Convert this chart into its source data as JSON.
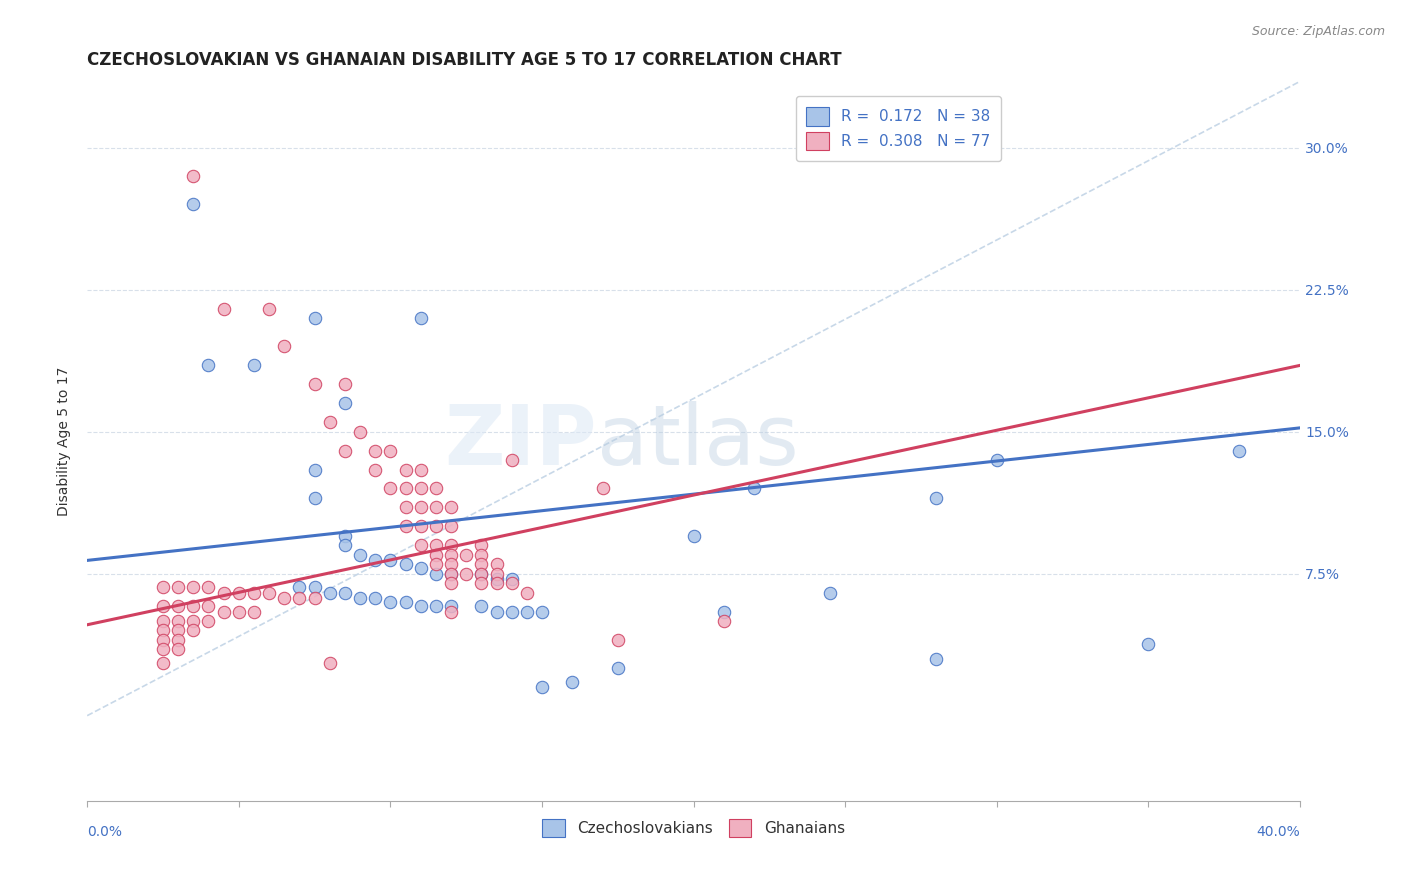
{
  "title": "CZECHOSLOVAKIAN VS GHANAIAN DISABILITY AGE 5 TO 17 CORRELATION CHART",
  "source": "Source: ZipAtlas.com",
  "ylabel": "Disability Age 5 to 17",
  "yticks": [
    0.075,
    0.15,
    0.225,
    0.3
  ],
  "ytick_labels": [
    "7.5%",
    "15.0%",
    "22.5%",
    "30.0%"
  ],
  "xlim": [
    0.0,
    0.4
  ],
  "ylim": [
    -0.045,
    0.335
  ],
  "blue_scatter": [
    [
      0.035,
      0.27
    ],
    [
      0.075,
      0.21
    ],
    [
      0.11,
      0.21
    ],
    [
      0.04,
      0.185
    ],
    [
      0.055,
      0.185
    ],
    [
      0.085,
      0.165
    ],
    [
      0.075,
      0.13
    ],
    [
      0.075,
      0.115
    ],
    [
      0.085,
      0.095
    ],
    [
      0.085,
      0.09
    ],
    [
      0.09,
      0.085
    ],
    [
      0.095,
      0.082
    ],
    [
      0.1,
      0.082
    ],
    [
      0.105,
      0.08
    ],
    [
      0.11,
      0.078
    ],
    [
      0.115,
      0.075
    ],
    [
      0.12,
      0.075
    ],
    [
      0.13,
      0.075
    ],
    [
      0.135,
      0.072
    ],
    [
      0.14,
      0.072
    ],
    [
      0.07,
      0.068
    ],
    [
      0.075,
      0.068
    ],
    [
      0.08,
      0.065
    ],
    [
      0.085,
      0.065
    ],
    [
      0.09,
      0.062
    ],
    [
      0.095,
      0.062
    ],
    [
      0.1,
      0.06
    ],
    [
      0.105,
      0.06
    ],
    [
      0.11,
      0.058
    ],
    [
      0.115,
      0.058
    ],
    [
      0.12,
      0.058
    ],
    [
      0.13,
      0.058
    ],
    [
      0.135,
      0.055
    ],
    [
      0.14,
      0.055
    ],
    [
      0.145,
      0.055
    ],
    [
      0.15,
      0.055
    ],
    [
      0.2,
      0.095
    ],
    [
      0.245,
      0.065
    ],
    [
      0.28,
      0.115
    ],
    [
      0.3,
      0.135
    ],
    [
      0.38,
      0.14
    ],
    [
      0.22,
      0.12
    ],
    [
      0.21,
      0.055
    ],
    [
      0.35,
      0.038
    ],
    [
      0.28,
      0.03
    ],
    [
      0.175,
      0.025
    ],
    [
      0.16,
      0.018
    ],
    [
      0.15,
      0.015
    ]
  ],
  "pink_scatter": [
    [
      0.035,
      0.285
    ],
    [
      0.045,
      0.215
    ],
    [
      0.06,
      0.215
    ],
    [
      0.065,
      0.195
    ],
    [
      0.075,
      0.175
    ],
    [
      0.085,
      0.175
    ],
    [
      0.08,
      0.155
    ],
    [
      0.09,
      0.15
    ],
    [
      0.085,
      0.14
    ],
    [
      0.095,
      0.14
    ],
    [
      0.1,
      0.14
    ],
    [
      0.095,
      0.13
    ],
    [
      0.105,
      0.13
    ],
    [
      0.11,
      0.13
    ],
    [
      0.1,
      0.12
    ],
    [
      0.105,
      0.12
    ],
    [
      0.11,
      0.12
    ],
    [
      0.115,
      0.12
    ],
    [
      0.105,
      0.11
    ],
    [
      0.11,
      0.11
    ],
    [
      0.115,
      0.11
    ],
    [
      0.12,
      0.11
    ],
    [
      0.105,
      0.1
    ],
    [
      0.11,
      0.1
    ],
    [
      0.115,
      0.1
    ],
    [
      0.12,
      0.1
    ],
    [
      0.11,
      0.09
    ],
    [
      0.115,
      0.09
    ],
    [
      0.12,
      0.09
    ],
    [
      0.13,
      0.09
    ],
    [
      0.115,
      0.085
    ],
    [
      0.12,
      0.085
    ],
    [
      0.125,
      0.085
    ],
    [
      0.13,
      0.085
    ],
    [
      0.115,
      0.08
    ],
    [
      0.12,
      0.08
    ],
    [
      0.13,
      0.08
    ],
    [
      0.135,
      0.08
    ],
    [
      0.12,
      0.075
    ],
    [
      0.125,
      0.075
    ],
    [
      0.13,
      0.075
    ],
    [
      0.135,
      0.075
    ],
    [
      0.12,
      0.07
    ],
    [
      0.13,
      0.07
    ],
    [
      0.135,
      0.07
    ],
    [
      0.14,
      0.07
    ],
    [
      0.025,
      0.068
    ],
    [
      0.03,
      0.068
    ],
    [
      0.035,
      0.068
    ],
    [
      0.04,
      0.068
    ],
    [
      0.045,
      0.065
    ],
    [
      0.05,
      0.065
    ],
    [
      0.055,
      0.065
    ],
    [
      0.06,
      0.065
    ],
    [
      0.065,
      0.062
    ],
    [
      0.07,
      0.062
    ],
    [
      0.075,
      0.062
    ],
    [
      0.025,
      0.058
    ],
    [
      0.03,
      0.058
    ],
    [
      0.035,
      0.058
    ],
    [
      0.04,
      0.058
    ],
    [
      0.045,
      0.055
    ],
    [
      0.05,
      0.055
    ],
    [
      0.055,
      0.055
    ],
    [
      0.025,
      0.05
    ],
    [
      0.03,
      0.05
    ],
    [
      0.035,
      0.05
    ],
    [
      0.04,
      0.05
    ],
    [
      0.025,
      0.045
    ],
    [
      0.03,
      0.045
    ],
    [
      0.035,
      0.045
    ],
    [
      0.025,
      0.04
    ],
    [
      0.03,
      0.04
    ],
    [
      0.025,
      0.035
    ],
    [
      0.03,
      0.035
    ],
    [
      0.025,
      0.028
    ],
    [
      0.08,
      0.028
    ],
    [
      0.12,
      0.055
    ],
    [
      0.145,
      0.065
    ],
    [
      0.14,
      0.135
    ],
    [
      0.17,
      0.12
    ],
    [
      0.175,
      0.04
    ],
    [
      0.21,
      0.05
    ]
  ],
  "blue_trend": {
    "x": [
      0.0,
      0.4
    ],
    "y": [
      0.082,
      0.152
    ]
  },
  "pink_trend": {
    "x": [
      0.0,
      0.4
    ],
    "y": [
      0.048,
      0.185
    ]
  },
  "ref_line": {
    "x": [
      0.0,
      0.4
    ],
    "y": [
      0.0,
      0.335
    ]
  },
  "scatter_blue_color": "#a8c4e8",
  "scatter_pink_color": "#f0b0c0",
  "trend_blue_color": "#4472c4",
  "trend_pink_color": "#d04060",
  "ref_line_color": "#c8d8e8",
  "background_color": "#ffffff",
  "watermark_zip": "ZIP",
  "watermark_atlas": "atlas",
  "title_fontsize": 12,
  "axis_label_fontsize": 10,
  "tick_fontsize": 10,
  "legend_fontsize": 11,
  "source_fontsize": 9
}
